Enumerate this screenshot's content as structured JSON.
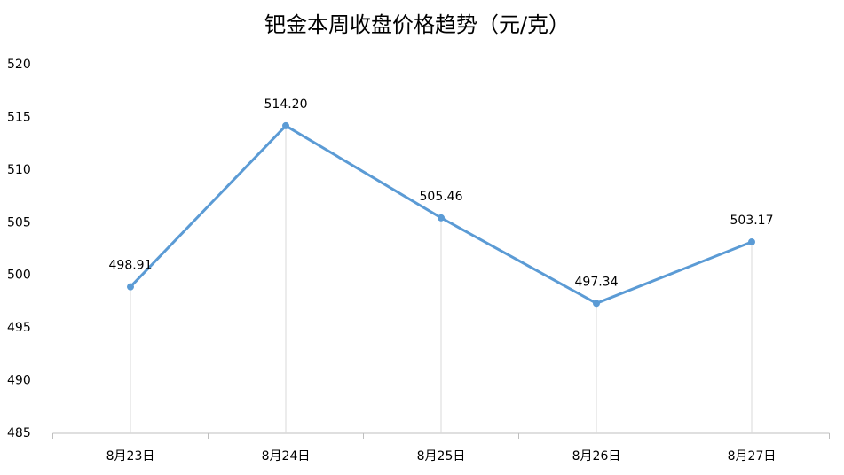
{
  "chart_data": {
    "type": "line",
    "title": "钯金本周收盘价格趋势（元/克）",
    "categories": [
      "8月23日",
      "8月24日",
      "8月25日",
      "8月26日",
      "8月27日"
    ],
    "series": [
      {
        "name": "收盘价",
        "color": "#5b9bd5",
        "values": [
          498.91,
          514.2,
          505.46,
          497.34,
          503.17
        ],
        "value_labels": [
          "498.91",
          "514.20",
          "505.46",
          "497.34",
          "503.17"
        ]
      }
    ],
    "ylim": [
      485,
      520
    ],
    "yticks": [
      485,
      490,
      495,
      500,
      505,
      510,
      515,
      520
    ],
    "drop_lines": true
  }
}
